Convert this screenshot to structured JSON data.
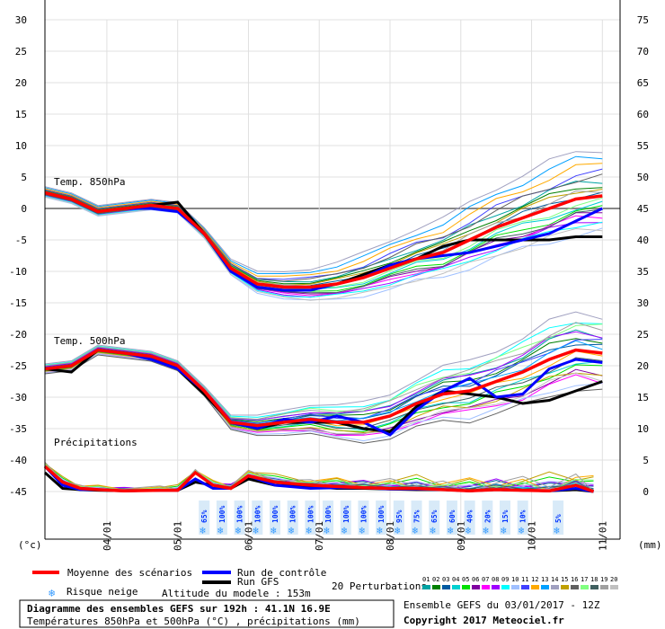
{
  "chart_data": {
    "type": "line",
    "title": "Diagramme des ensembles GEFS sur 192h : 41.1N 16.9E",
    "subtitle": "Températures 850hPa et 500hPa (°C) , précipitations (mm)",
    "left_unit": "(°c)",
    "right_unit": "(mm)",
    "ylim_left": [
      -45,
      30
    ],
    "ylim_right": [
      0,
      75
    ],
    "yticks_left": [
      "30",
      "25",
      "20",
      "15",
      "10",
      "5",
      "0",
      "-5",
      "-10",
      "-15",
      "-20",
      "-25",
      "-30",
      "-35",
      "-40",
      "-45"
    ],
    "yticks_right": [
      "75",
      "70",
      "65",
      "60",
      "55",
      "50",
      "45",
      "40",
      "35",
      "30",
      "25",
      "20",
      "15",
      "10",
      "5",
      "0"
    ],
    "x_steps": 65,
    "date_labels": [
      {
        "label": "04/01",
        "step": 7
      },
      {
        "label": "05/01",
        "step": 15
      },
      {
        "label": "06/01",
        "step": 23
      },
      {
        "label": "07/01",
        "step": 31
      },
      {
        "label": "08/01",
        "step": 39
      },
      {
        "label": "09/01",
        "step": 47
      },
      {
        "label": "10/01",
        "step": 55
      },
      {
        "label": "11/01",
        "step": 63
      }
    ],
    "panel_labels": [
      "Temp. 850hPa",
      "Temp. 500hPa",
      "Précipitations"
    ],
    "snow_risk": [
      {
        "step": 18,
        "label": "65%"
      },
      {
        "step": 20,
        "label": "100%"
      },
      {
        "step": 22,
        "label": "100%"
      },
      {
        "step": 24,
        "label": "100%"
      },
      {
        "step": 26,
        "label": "100%"
      },
      {
        "step": 28,
        "label": "100%"
      },
      {
        "step": 30,
        "label": "100%"
      },
      {
        "step": 32,
        "label": "100%"
      },
      {
        "step": 34,
        "label": "100%"
      },
      {
        "step": 36,
        "label": "100%"
      },
      {
        "step": 38,
        "label": "100%"
      },
      {
        "step": 40,
        "label": "95%"
      },
      {
        "step": 42,
        "label": "75%"
      },
      {
        "step": 44,
        "label": "65%"
      },
      {
        "step": 46,
        "label": "60%"
      },
      {
        "step": 48,
        "label": "40%"
      },
      {
        "step": 50,
        "label": "20%"
      },
      {
        "step": 52,
        "label": "15%"
      },
      {
        "step": 54,
        "label": "10%"
      },
      {
        "step": 58,
        "label": "5%"
      }
    ],
    "t850": {
      "mean": [
        [
          0,
          2.5
        ],
        [
          3,
          1.5
        ],
        [
          6,
          -0.5
        ],
        [
          9,
          0
        ],
        [
          12,
          0.5
        ],
        [
          15,
          0
        ],
        [
          18,
          -4
        ],
        [
          21,
          -9.5
        ],
        [
          24,
          -12
        ],
        [
          27,
          -12.5
        ],
        [
          30,
          -12.5
        ],
        [
          33,
          -12
        ],
        [
          36,
          -11
        ],
        [
          39,
          -9.5
        ],
        [
          42,
          -8
        ],
        [
          45,
          -7
        ],
        [
          48,
          -5
        ],
        [
          51,
          -3
        ],
        [
          54,
          -1.5
        ],
        [
          57,
          0
        ],
        [
          60,
          1.5
        ],
        [
          63,
          2
        ]
      ],
      "control": [
        [
          0,
          2.5
        ],
        [
          3,
          1.5
        ],
        [
          6,
          -0.5
        ],
        [
          9,
          0
        ],
        [
          12,
          0
        ],
        [
          15,
          -0.5
        ],
        [
          18,
          -4
        ],
        [
          21,
          -10
        ],
        [
          24,
          -12.5
        ],
        [
          27,
          -13
        ],
        [
          30,
          -13
        ],
        [
          33,
          -12
        ],
        [
          36,
          -11
        ],
        [
          39,
          -9
        ],
        [
          42,
          -8
        ],
        [
          45,
          -7.5
        ],
        [
          48,
          -7
        ],
        [
          51,
          -6
        ],
        [
          54,
          -5
        ],
        [
          57,
          -4
        ],
        [
          60,
          -2
        ],
        [
          63,
          0
        ]
      ],
      "gfs": [
        [
          0,
          2.5
        ],
        [
          3,
          1.5
        ],
        [
          6,
          -0.5
        ],
        [
          9,
          0
        ],
        [
          12,
          0.5
        ],
        [
          15,
          1
        ],
        [
          18,
          -4
        ],
        [
          21,
          -10
        ],
        [
          24,
          -12
        ],
        [
          27,
          -12.5
        ],
        [
          30,
          -12.5
        ],
        [
          33,
          -12
        ],
        [
          36,
          -10.5
        ],
        [
          39,
          -9
        ],
        [
          42,
          -8
        ],
        [
          45,
          -6
        ],
        [
          48,
          -5
        ],
        [
          51,
          -5
        ],
        [
          54,
          -5
        ],
        [
          57,
          -5
        ],
        [
          60,
          -4.5
        ],
        [
          63,
          -4.5
        ]
      ]
    },
    "t500": {
      "mean": [
        [
          0,
          -25.5
        ],
        [
          3,
          -25
        ],
        [
          6,
          -22.5
        ],
        [
          9,
          -23
        ],
        [
          12,
          -23.5
        ],
        [
          15,
          -25
        ],
        [
          18,
          -29
        ],
        [
          21,
          -34
        ],
        [
          24,
          -34.5
        ],
        [
          27,
          -34
        ],
        [
          30,
          -33.5
        ],
        [
          33,
          -34
        ],
        [
          36,
          -34
        ],
        [
          39,
          -33
        ],
        [
          42,
          -31
        ],
        [
          45,
          -29.5
        ],
        [
          48,
          -29
        ],
        [
          51,
          -27.5
        ],
        [
          54,
          -26
        ],
        [
          57,
          -24
        ],
        [
          60,
          -22.5
        ],
        [
          63,
          -23
        ]
      ],
      "control": [
        [
          0,
          -25.5
        ],
        [
          3,
          -25
        ],
        [
          6,
          -22.5
        ],
        [
          9,
          -23
        ],
        [
          12,
          -24
        ],
        [
          15,
          -25.5
        ],
        [
          18,
          -29
        ],
        [
          21,
          -34
        ],
        [
          24,
          -35
        ],
        [
          27,
          -33.5
        ],
        [
          30,
          -34
        ],
        [
          33,
          -33
        ],
        [
          36,
          -34
        ],
        [
          39,
          -36
        ],
        [
          42,
          -32
        ],
        [
          45,
          -29
        ],
        [
          48,
          -27
        ],
        [
          51,
          -30
        ],
        [
          54,
          -29.5
        ],
        [
          57,
          -25.5
        ],
        [
          60,
          -24
        ],
        [
          63,
          -24.5
        ]
      ],
      "gfs": [
        [
          0,
          -25.5
        ],
        [
          3,
          -26
        ],
        [
          6,
          -22.5
        ],
        [
          9,
          -23
        ],
        [
          12,
          -23.5
        ],
        [
          15,
          -25.5
        ],
        [
          18,
          -29.5
        ],
        [
          21,
          -34
        ],
        [
          24,
          -35
        ],
        [
          27,
          -34
        ],
        [
          30,
          -34
        ],
        [
          33,
          -34
        ],
        [
          36,
          -35
        ],
        [
          39,
          -35.5
        ],
        [
          42,
          -31.5
        ],
        [
          45,
          -29
        ],
        [
          48,
          -29.5
        ],
        [
          51,
          -30
        ],
        [
          54,
          -31
        ],
        [
          57,
          -30.5
        ],
        [
          60,
          -29
        ],
        [
          63,
          -27.5
        ]
      ]
    },
    "precip": {
      "mean": [
        [
          0,
          4
        ],
        [
          2,
          1.5
        ],
        [
          4,
          0.5
        ],
        [
          6,
          0.3
        ],
        [
          9,
          0.1
        ],
        [
          13,
          0.2
        ],
        [
          15,
          0.2
        ],
        [
          17,
          3
        ],
        [
          19,
          1
        ],
        [
          21,
          0.5
        ],
        [
          23,
          2.5
        ],
        [
          26,
          1.5
        ],
        [
          30,
          1
        ],
        [
          33,
          0.8
        ],
        [
          36,
          0.6
        ],
        [
          39,
          0.5
        ],
        [
          42,
          0.5
        ],
        [
          45,
          0.3
        ],
        [
          48,
          0.1
        ],
        [
          51,
          0.3
        ],
        [
          54,
          0.2
        ],
        [
          57,
          0.1
        ],
        [
          60,
          1
        ],
        [
          62,
          0
        ]
      ],
      "control": [
        [
          0,
          4
        ],
        [
          2,
          1
        ],
        [
          4,
          0.3
        ],
        [
          6,
          0.3
        ],
        [
          9,
          0.1
        ],
        [
          13,
          0.2
        ],
        [
          15,
          0.2
        ],
        [
          17,
          2
        ],
        [
          19,
          0.5
        ],
        [
          21,
          0.5
        ],
        [
          23,
          2.5
        ],
        [
          26,
          1
        ],
        [
          30,
          0.5
        ],
        [
          33,
          0.6
        ],
        [
          36,
          0.6
        ],
        [
          39,
          0.4
        ],
        [
          42,
          0.4
        ],
        [
          45,
          0.3
        ],
        [
          48,
          0.1
        ],
        [
          51,
          0.3
        ],
        [
          54,
          0.2
        ],
        [
          57,
          0.1
        ],
        [
          60,
          0.5
        ],
        [
          62,
          0
        ]
      ],
      "gfs": [
        [
          0,
          3
        ],
        [
          2,
          0.5
        ],
        [
          4,
          0.3
        ],
        [
          6,
          0.2
        ],
        [
          9,
          0.1
        ],
        [
          13,
          0.2
        ],
        [
          15,
          0.2
        ],
        [
          17,
          1.5
        ],
        [
          19,
          1
        ],
        [
          21,
          0.5
        ],
        [
          23,
          2
        ],
        [
          26,
          1
        ],
        [
          30,
          0.8
        ],
        [
          33,
          0.5
        ],
        [
          36,
          0.5
        ],
        [
          39,
          0.4
        ],
        [
          42,
          0.3
        ],
        [
          45,
          0.3
        ],
        [
          48,
          0.1
        ],
        [
          51,
          0.3
        ],
        [
          54,
          0.2
        ],
        [
          57,
          0.1
        ],
        [
          60,
          0.3
        ],
        [
          62,
          0
        ]
      ]
    },
    "perturbation_colors": [
      "#00a3a3",
      "#008000",
      "#005aa0",
      "#00d0d0",
      "#00e000",
      "#8000a0",
      "#ff00ff",
      "#a000ff",
      "#00ffff",
      "#a0c0ff",
      "#4040ff",
      "#ffaa00",
      "#00a0ff",
      "#a0a0c0",
      "#c0a000",
      "#606060",
      "#80ff80",
      "#406060",
      "#a0a0a0",
      "#c0c0c0"
    ],
    "perturbation_spread": [
      {
        "t850": [
          2.2,
          1.6,
          0.5,
          -1.2,
          -1.8,
          -2.4,
          -2.7,
          -3.2,
          -3.5,
          -4.8,
          3.2,
          4.3,
          5.4,
          6.5,
          1.2,
          2.8,
          -0.8,
          -2.2,
          0.6,
          -4.3
        ],
        "t500": [
          2.5,
          1.8,
          1.2,
          -1.6,
          -2.2,
          -3.2,
          -3.8,
          2.6,
          4.2,
          -4.5,
          1.4,
          -0.6,
          0.8,
          5.2,
          -2.8,
          -5.2,
          3.5,
          -1.4,
          3.3,
          -3.4
        ],
        "precip": [
          0.6,
          0.3,
          1.2,
          0.4,
          1.6,
          0.2,
          0.8,
          1.4,
          0.3,
          1.1,
          0.5,
          1.8,
          0.7,
          0.9,
          2.2,
          0.4,
          1.3,
          0.6,
          1.7,
          0.2
        ]
      }
    ],
    "legend": {
      "mean": "Moyenne des scénarios",
      "control": "Run de contrôle",
      "gfs": "Run GFS",
      "snow": "Risque neige",
      "altitude": "Altitude du modele : 153m",
      "perturbations": "20 Perturbations",
      "perturbation_ids": [
        "01",
        "02",
        "03",
        "04",
        "05",
        "06",
        "07",
        "08",
        "09",
        "10",
        "11",
        "12",
        "13",
        "14",
        "15",
        "16",
        "17",
        "18",
        "19",
        "20"
      ],
      "info": "Ensemble GEFS du 03/01/2017 - 12Z",
      "copyright": "Copyright 2017 Meteociel.fr"
    },
    "series_colors": {
      "mean": "#ff0000",
      "control": "#0000ff",
      "gfs": "#000000",
      "zero_line": "#888888"
    }
  }
}
